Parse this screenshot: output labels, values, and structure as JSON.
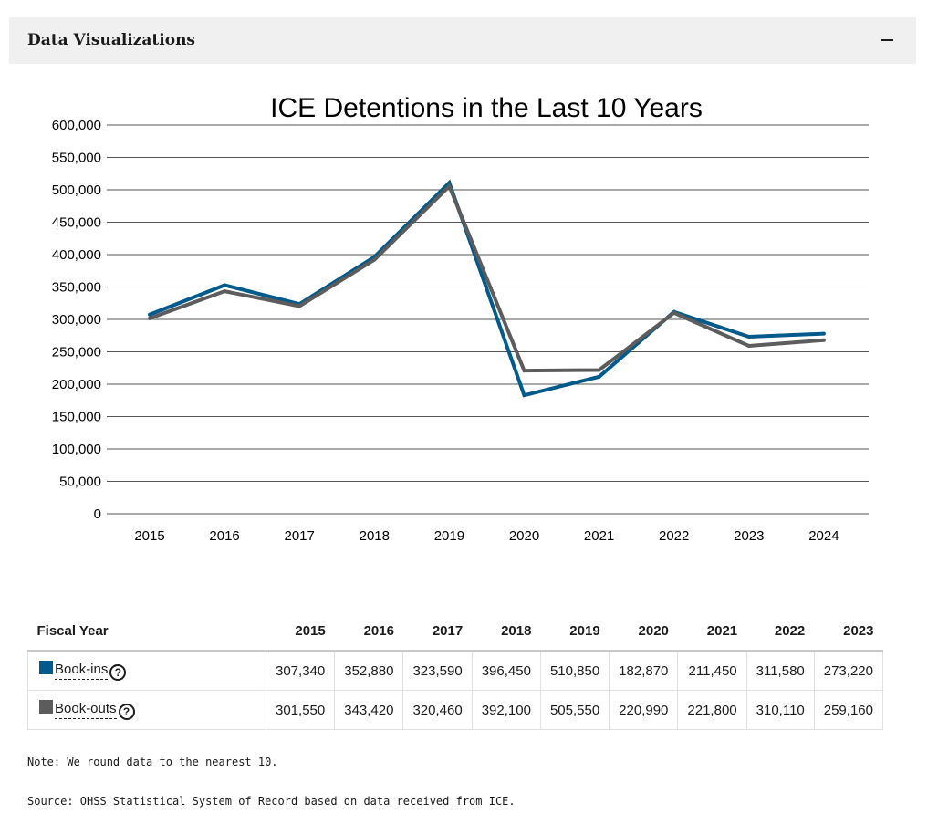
{
  "section": {
    "title": "Data Visualizations",
    "collapse_icon": "minus-icon"
  },
  "chart_data": {
    "type": "line",
    "title": "ICE Detentions in the Last 10 Years",
    "categories": [
      "2015",
      "2016",
      "2017",
      "2018",
      "2019",
      "2020",
      "2021",
      "2022",
      "2023",
      "2024"
    ],
    "series": [
      {
        "name": "Book-ins",
        "color": "#005a8c",
        "values": [
          307340,
          352880,
          323590,
          396450,
          510850,
          182870,
          211450,
          311580,
          273220,
          278000
        ]
      },
      {
        "name": "Book-outs",
        "color": "#5c5c5c",
        "values": [
          301550,
          343420,
          320460,
          392100,
          505550,
          220990,
          221800,
          310110,
          259160,
          268000
        ]
      }
    ],
    "ylim": [
      0,
      600000
    ],
    "ytick_step": 50000,
    "ytick_labels": [
      "0",
      "50,000",
      "100,000",
      "150,000",
      "200,000",
      "250,000",
      "300,000",
      "350,000",
      "400,000",
      "450,000",
      "500,000",
      "550,000",
      "600,000"
    ],
    "grid": true
  },
  "table": {
    "header_label": "Fiscal Year",
    "years": [
      "2015",
      "2016",
      "2017",
      "2018",
      "2019",
      "2020",
      "2021",
      "2022",
      "2023"
    ],
    "rows": [
      {
        "label": "Book-ins",
        "help": "?",
        "color": "#005a8c",
        "values": [
          "307,340",
          "352,880",
          "323,590",
          "396,450",
          "510,850",
          "182,870",
          "211,450",
          "311,580",
          "273,220"
        ]
      },
      {
        "label": "Book-outs",
        "help": "?",
        "color": "#5c5c5c",
        "values": [
          "301,550",
          "343,420",
          "320,460",
          "392,100",
          "505,550",
          "220,990",
          "221,800",
          "310,110",
          "259,160"
        ]
      }
    ]
  },
  "notes": {
    "rounding": "Note: We round data to the nearest 10.",
    "source": "Source: OHSS Statistical System of Record based on data received from ICE."
  }
}
